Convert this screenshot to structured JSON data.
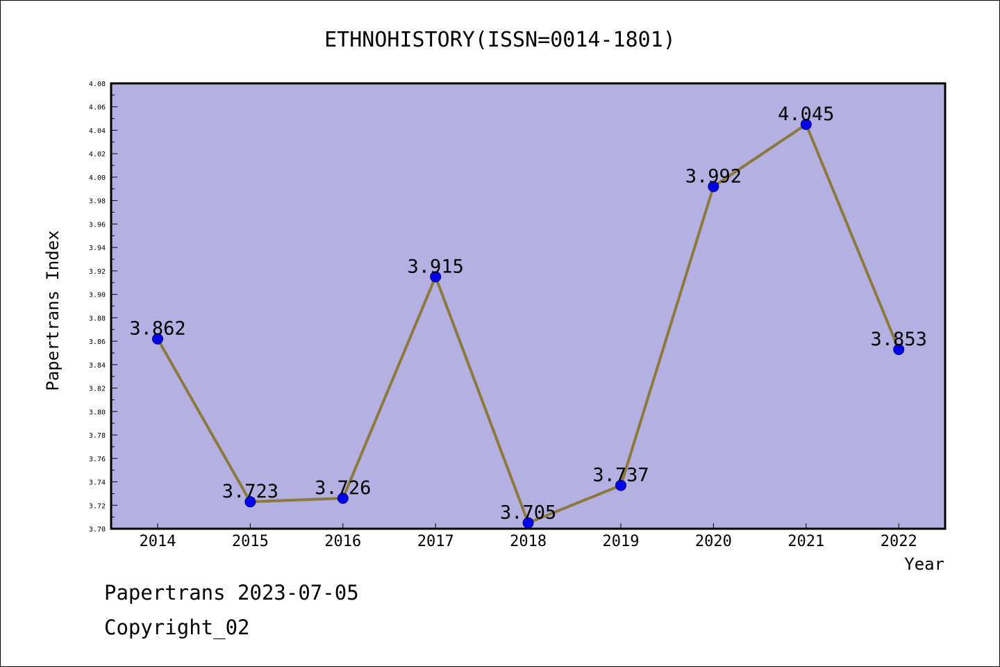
{
  "chart_data": {
    "type": "line",
    "title": "ETHNOHISTORY(ISSN=0014-1801)",
    "xlabel": "Year",
    "ylabel": "Papertrans Index",
    "categories": [
      "2014",
      "2015",
      "2016",
      "2017",
      "2018",
      "2019",
      "2020",
      "2021",
      "2022"
    ],
    "values": [
      3.862,
      3.723,
      3.726,
      3.915,
      3.705,
      3.737,
      3.992,
      4.045,
      3.853
    ],
    "data_labels": [
      "3.862",
      "3.723",
      "3.726",
      "3.915",
      "3.705",
      "3.737",
      "3.992",
      "4.045",
      "3.853"
    ],
    "ylim": [
      3.7,
      4.08
    ],
    "yticks": [
      "3.70",
      "3.72",
      "3.74",
      "3.76",
      "3.78",
      "3.80",
      "3.82",
      "3.84",
      "3.86",
      "3.88",
      "3.90",
      "3.92",
      "3.94",
      "3.96",
      "3.98",
      "4.00",
      "4.02",
      "4.04",
      "4.06",
      "4.08"
    ],
    "grid": false,
    "colors": {
      "plot_background": "#b5b0e2",
      "line": "#8b7a3c",
      "marker": "#0000ee",
      "marker_edge": "#00007a"
    }
  },
  "footer": {
    "line1": "Papertrans 2023-07-05",
    "line2": "Copyright_02"
  }
}
